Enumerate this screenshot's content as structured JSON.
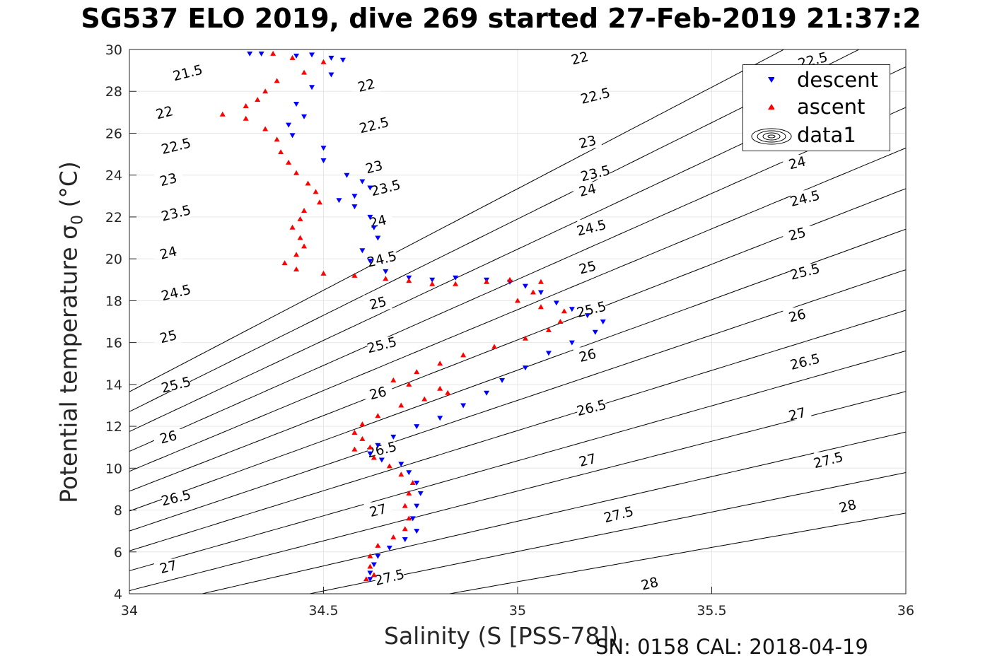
{
  "title": "SG537 ELO 2019, dive 269 started 27-Feb-2019 21:37:2",
  "footer": "SN: 0158  CAL: 2018-04-19",
  "chart_data": {
    "type": "scatter",
    "xlabel": "Salinity (S [PSS-78])",
    "ylabel_main": "Potential temperature ",
    "ylabel_sigma": "σ",
    "ylabel_sub": "0",
    "ylabel_unit": " (°C)",
    "xlim": [
      34,
      36
    ],
    "ylim": [
      4,
      30
    ],
    "xticks": [
      "34",
      "34.5",
      "35",
      "35.5",
      "36"
    ],
    "xtick_values": [
      34,
      34.5,
      35,
      35.5,
      36
    ],
    "yticks": [
      "4",
      "6",
      "8",
      "10",
      "12",
      "14",
      "16",
      "18",
      "20",
      "22",
      "24",
      "26",
      "28",
      "30"
    ],
    "ytick_values": [
      4,
      6,
      8,
      10,
      12,
      14,
      16,
      18,
      20,
      22,
      24,
      26,
      28,
      30
    ],
    "grid": true,
    "legend_placement": "top-right",
    "legend": [
      "descent",
      "ascent",
      "data1"
    ],
    "colors": {
      "descent": "#0000ff",
      "ascent": "#ff0000",
      "contour": "#000000"
    },
    "density_contours": [
      21.5,
      22,
      22.5,
      23,
      23.5,
      24,
      24.5,
      25,
      25.5,
      26,
      26.5,
      27,
      27.5,
      28
    ],
    "contour_labels": [
      {
        "text": "21.5",
        "s": 34.15,
        "t": 28.9
      },
      {
        "text": "22",
        "s": 34.09,
        "t": 27.0
      },
      {
        "text": "22",
        "s": 34.61,
        "t": 28.3
      },
      {
        "text": "22",
        "s": 35.16,
        "t": 29.6
      },
      {
        "text": "22.5",
        "s": 34.12,
        "t": 25.4
      },
      {
        "text": "22.5",
        "s": 34.63,
        "t": 26.4
      },
      {
        "text": "22.5",
        "s": 35.2,
        "t": 27.8
      },
      {
        "text": "22.5",
        "s": 35.76,
        "t": 29.5
      },
      {
        "text": "23",
        "s": 34.1,
        "t": 23.8
      },
      {
        "text": "23",
        "s": 34.63,
        "t": 24.4
      },
      {
        "text": "23",
        "s": 35.18,
        "t": 25.6
      },
      {
        "text": "23.5",
        "s": 34.12,
        "t": 22.2
      },
      {
        "text": "23.5",
        "s": 34.66,
        "t": 23.4
      },
      {
        "text": "23.5",
        "s": 35.2,
        "t": 24.1
      },
      {
        "text": "24",
        "s": 34.1,
        "t": 20.3
      },
      {
        "text": "24",
        "s": 34.64,
        "t": 21.8
      },
      {
        "text": "24",
        "s": 35.18,
        "t": 23.3
      },
      {
        "text": "24",
        "s": 35.72,
        "t": 24.6
      },
      {
        "text": "24.5",
        "s": 34.12,
        "t": 18.4
      },
      {
        "text": "24.5",
        "s": 34.65,
        "t": 20.0
      },
      {
        "text": "24.5",
        "s": 35.19,
        "t": 21.5
      },
      {
        "text": "24.5",
        "s": 35.74,
        "t": 22.9
      },
      {
        "text": "25",
        "s": 34.1,
        "t": 16.3
      },
      {
        "text": "25",
        "s": 34.64,
        "t": 17.9
      },
      {
        "text": "25",
        "s": 35.18,
        "t": 19.6
      },
      {
        "text": "25",
        "s": 35.72,
        "t": 21.2
      },
      {
        "text": "25.5",
        "s": 34.12,
        "t": 14.0
      },
      {
        "text": "25.5",
        "s": 34.65,
        "t": 15.9
      },
      {
        "text": "25.5",
        "s": 35.19,
        "t": 17.6
      },
      {
        "text": "25.5",
        "s": 35.74,
        "t": 19.4
      },
      {
        "text": "26",
        "s": 34.1,
        "t": 11.5
      },
      {
        "text": "26",
        "s": 34.64,
        "t": 13.6
      },
      {
        "text": "26",
        "s": 35.18,
        "t": 15.4
      },
      {
        "text": "26",
        "s": 35.72,
        "t": 17.3
      },
      {
        "text": "26.5",
        "s": 34.12,
        "t": 8.6
      },
      {
        "text": "26.5",
        "s": 34.65,
        "t": 10.9
      },
      {
        "text": "26.5",
        "s": 35.19,
        "t": 12.9
      },
      {
        "text": "26.5",
        "s": 35.74,
        "t": 15.1
      },
      {
        "text": "27",
        "s": 34.1,
        "t": 5.3
      },
      {
        "text": "27",
        "s": 34.64,
        "t": 8.0
      },
      {
        "text": "27",
        "s": 35.18,
        "t": 10.4
      },
      {
        "text": "27",
        "s": 35.72,
        "t": 12.6
      },
      {
        "text": "27.5",
        "s": 34.67,
        "t": 4.8
      },
      {
        "text": "27.5",
        "s": 35.26,
        "t": 7.8
      },
      {
        "text": "27.5",
        "s": 35.8,
        "t": 10.4
      },
      {
        "text": "28",
        "s": 35.34,
        "t": 4.5
      },
      {
        "text": "28",
        "s": 35.85,
        "t": 8.2
      }
    ],
    "series": [
      {
        "name": "descent",
        "marker": "triangle-down",
        "points": [
          [
            34.31,
            29.8
          ],
          [
            34.34,
            29.8
          ],
          [
            34.43,
            29.7
          ],
          [
            34.47,
            29.75
          ],
          [
            34.52,
            29.6
          ],
          [
            34.55,
            29.5
          ],
          [
            34.52,
            28.8
          ],
          [
            34.47,
            28.2
          ],
          [
            34.43,
            27.4
          ],
          [
            34.45,
            26.8
          ],
          [
            34.41,
            26.4
          ],
          [
            34.42,
            25.9
          ],
          [
            34.5,
            25.3
          ],
          [
            34.5,
            24.7
          ],
          [
            34.56,
            24.0
          ],
          [
            34.6,
            23.7
          ],
          [
            34.62,
            23.4
          ],
          [
            34.58,
            23.0
          ],
          [
            34.54,
            22.8
          ],
          [
            34.58,
            22.5
          ],
          [
            34.62,
            22.0
          ],
          [
            34.63,
            21.5
          ],
          [
            34.64,
            21.0
          ],
          [
            34.6,
            20.4
          ],
          [
            34.62,
            19.9
          ],
          [
            34.66,
            19.4
          ],
          [
            34.72,
            19.1
          ],
          [
            34.78,
            19.0
          ],
          [
            34.84,
            19.1
          ],
          [
            34.92,
            19.0
          ],
          [
            34.98,
            18.9
          ],
          [
            35.02,
            18.7
          ],
          [
            35.06,
            18.4
          ],
          [
            35.1,
            17.9
          ],
          [
            35.14,
            17.6
          ],
          [
            35.18,
            17.3
          ],
          [
            35.22,
            17.0
          ],
          [
            35.2,
            16.5
          ],
          [
            35.14,
            16.0
          ],
          [
            35.08,
            15.5
          ],
          [
            35.02,
            14.8
          ],
          [
            34.96,
            14.2
          ],
          [
            34.92,
            13.6
          ],
          [
            34.86,
            13.0
          ],
          [
            34.8,
            12.4
          ],
          [
            34.74,
            12.0
          ],
          [
            34.68,
            11.5
          ],
          [
            34.64,
            11.1
          ],
          [
            34.62,
            10.7
          ],
          [
            34.65,
            10.4
          ],
          [
            34.7,
            10.2
          ],
          [
            34.72,
            9.8
          ],
          [
            34.74,
            9.3
          ],
          [
            34.75,
            8.8
          ],
          [
            34.74,
            8.2
          ],
          [
            34.73,
            7.6
          ],
          [
            34.74,
            7.0
          ],
          [
            34.71,
            6.6
          ],
          [
            34.67,
            6.2
          ],
          [
            34.64,
            5.8
          ],
          [
            34.63,
            5.4
          ],
          [
            34.62,
            5.0
          ],
          [
            34.62,
            4.7
          ]
        ]
      },
      {
        "name": "ascent",
        "marker": "triangle-up",
        "points": [
          [
            34.37,
            29.8
          ],
          [
            34.42,
            29.6
          ],
          [
            34.5,
            29.4
          ],
          [
            34.45,
            28.9
          ],
          [
            34.38,
            28.5
          ],
          [
            34.35,
            28.0
          ],
          [
            34.33,
            27.6
          ],
          [
            34.3,
            27.3
          ],
          [
            34.24,
            26.9
          ],
          [
            34.3,
            26.7
          ],
          [
            34.35,
            26.2
          ],
          [
            34.38,
            25.7
          ],
          [
            34.39,
            25.1
          ],
          [
            34.41,
            24.6
          ],
          [
            34.43,
            24.1
          ],
          [
            34.46,
            23.6
          ],
          [
            34.48,
            23.2
          ],
          [
            34.49,
            22.7
          ],
          [
            34.45,
            22.3
          ],
          [
            34.44,
            21.9
          ],
          [
            34.42,
            21.5
          ],
          [
            34.44,
            21.0
          ],
          [
            34.45,
            20.6
          ],
          [
            34.43,
            20.2
          ],
          [
            34.4,
            19.8
          ],
          [
            34.43,
            19.5
          ],
          [
            34.5,
            19.3
          ],
          [
            34.58,
            19.2
          ],
          [
            34.66,
            19.05
          ],
          [
            34.72,
            18.95
          ],
          [
            34.78,
            18.8
          ],
          [
            34.84,
            18.8
          ],
          [
            34.92,
            18.9
          ],
          [
            34.98,
            19.0
          ],
          [
            35.06,
            18.9
          ],
          [
            35.04,
            18.4
          ],
          [
            35.0,
            18.0
          ],
          [
            35.06,
            17.7
          ],
          [
            35.12,
            17.5
          ],
          [
            35.11,
            17.0
          ],
          [
            35.08,
            16.6
          ],
          [
            35.02,
            16.2
          ],
          [
            34.94,
            15.8
          ],
          [
            34.86,
            15.4
          ],
          [
            34.8,
            15.0
          ],
          [
            34.74,
            14.6
          ],
          [
            34.68,
            14.2
          ],
          [
            34.72,
            14.0
          ],
          [
            34.8,
            13.8
          ],
          [
            34.82,
            13.6
          ],
          [
            34.76,
            13.3
          ],
          [
            34.7,
            13.0
          ],
          [
            34.64,
            12.5
          ],
          [
            34.6,
            12.1
          ],
          [
            34.58,
            11.7
          ],
          [
            34.6,
            11.4
          ],
          [
            34.62,
            11.0
          ],
          [
            34.58,
            10.9
          ],
          [
            34.63,
            10.5
          ],
          [
            34.67,
            10.1
          ],
          [
            34.7,
            9.7
          ],
          [
            34.73,
            9.3
          ],
          [
            34.72,
            8.8
          ],
          [
            34.71,
            8.2
          ],
          [
            34.72,
            7.6
          ],
          [
            34.71,
            7.1
          ],
          [
            34.68,
            6.7
          ],
          [
            34.64,
            6.3
          ],
          [
            34.62,
            5.8
          ],
          [
            34.62,
            5.3
          ],
          [
            34.63,
            4.9
          ],
          [
            34.61,
            4.7
          ]
        ]
      }
    ]
  }
}
